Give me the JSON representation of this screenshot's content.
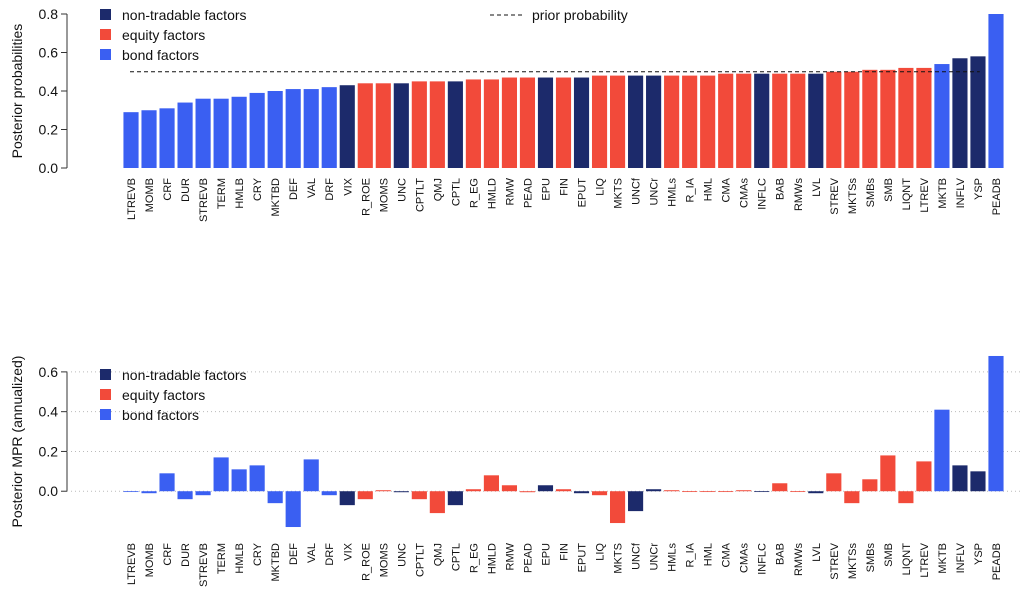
{
  "chart_data": [
    {
      "type": "bar",
      "ylabel": "Posterior probabilities",
      "categories": [
        "LTREVB",
        "MOMB",
        "CRF",
        "DUR",
        "STREVB",
        "TERM",
        "HMLB",
        "CRY",
        "MKTBD",
        "DEF",
        "VAL",
        "DRF",
        "VIX",
        "R_ROE",
        "MOMS",
        "UNC",
        "CPTLT",
        "QMJ",
        "CPTL",
        "R_EG",
        "HMLD",
        "RMW",
        "PEAD",
        "EPU",
        "FIN",
        "EPUT",
        "LIQ",
        "MKTS",
        "UNCf",
        "UNCr",
        "HMLs",
        "R_IA",
        "HML",
        "CMA",
        "CMAs",
        "INFLC",
        "BAB",
        "RMWs",
        "LVL",
        "STREV",
        "MKTSs",
        "SMBs",
        "SMB",
        "LIQNT",
        "LTREV",
        "MKTB",
        "INFLV",
        "YSP",
        "PEADB"
      ],
      "series": [
        {
          "name": "non-tradable factors",
          "color": "#1c2a6b",
          "values": [
            null,
            null,
            null,
            null,
            null,
            null,
            null,
            null,
            null,
            null,
            null,
            null,
            0.43,
            null,
            null,
            0.44,
            null,
            null,
            0.45,
            null,
            null,
            null,
            null,
            0.47,
            null,
            0.47,
            null,
            null,
            0.48,
            0.48,
            null,
            null,
            null,
            null,
            null,
            0.49,
            null,
            null,
            0.49,
            null,
            null,
            null,
            null,
            null,
            null,
            null,
            0.57,
            0.58,
            null
          ]
        },
        {
          "name": "equity factors",
          "color": "#f24a3a",
          "values": [
            null,
            null,
            null,
            null,
            null,
            null,
            null,
            null,
            null,
            null,
            null,
            null,
            null,
            0.44,
            0.44,
            null,
            0.45,
            0.45,
            null,
            0.46,
            0.46,
            0.47,
            0.47,
            null,
            0.47,
            null,
            0.48,
            0.48,
            null,
            null,
            0.48,
            0.48,
            0.48,
            0.49,
            0.49,
            null,
            0.49,
            0.49,
            null,
            0.5,
            0.5,
            0.51,
            0.51,
            0.52,
            0.52,
            null,
            null,
            null,
            null
          ]
        },
        {
          "name": "bond factors",
          "color": "#3a5ff2",
          "values": [
            0.29,
            0.3,
            0.31,
            0.34,
            0.36,
            0.36,
            0.37,
            0.39,
            0.4,
            0.41,
            0.41,
            0.42,
            null,
            null,
            null,
            null,
            null,
            null,
            null,
            null,
            null,
            null,
            null,
            null,
            null,
            null,
            null,
            null,
            null,
            null,
            null,
            null,
            null,
            null,
            null,
            null,
            null,
            null,
            null,
            null,
            null,
            null,
            null,
            null,
            null,
            0.54,
            null,
            null,
            0.8
          ]
        }
      ],
      "reference_line": {
        "label": "prior probability",
        "value": 0.5
      },
      "ylim": [
        0,
        0.8
      ],
      "yticks": [
        {
          "value": 0,
          "label": "0.0"
        },
        0.2,
        0.4,
        0.6,
        0.8
      ],
      "grid": false,
      "legend": "top-left"
    },
    {
      "type": "bar",
      "ylabel": "Posterior MPR (annualized)",
      "categories": [
        "LTREVB",
        "MOMB",
        "CRF",
        "DUR",
        "STREVB",
        "TERM",
        "HMLB",
        "CRY",
        "MKTBD",
        "DEF",
        "VAL",
        "DRF",
        "VIX",
        "R_ROE",
        "MOMS",
        "UNC",
        "CPTLT",
        "QMJ",
        "CPTL",
        "R_EG",
        "HMLD",
        "RMW",
        "PEAD",
        "EPU",
        "FIN",
        "EPUT",
        "LIQ",
        "MKTS",
        "UNCf",
        "UNCr",
        "HMLs",
        "R_IA",
        "HML",
        "CMA",
        "CMAs",
        "INFLC",
        "BAB",
        "RMWs",
        "LVL",
        "STREV",
        "MKTSs",
        "SMBs",
        "SMB",
        "LIQNT",
        "LTREV",
        "MKTB",
        "INFLV",
        "YSP",
        "PEADB"
      ],
      "series": [
        {
          "name": "non-tradable factors",
          "color": "#1c2a6b",
          "values": [
            null,
            null,
            null,
            null,
            null,
            null,
            null,
            null,
            null,
            null,
            null,
            null,
            -0.07,
            null,
            null,
            -0.005,
            null,
            null,
            -0.07,
            null,
            null,
            null,
            null,
            0.03,
            null,
            -0.01,
            null,
            null,
            -0.1,
            0.01,
            null,
            null,
            null,
            null,
            null,
            0,
            null,
            null,
            -0.01,
            null,
            null,
            null,
            null,
            null,
            null,
            null,
            0.13,
            0.1,
            null
          ]
        },
        {
          "name": "equity factors",
          "color": "#f24a3a",
          "values": [
            null,
            null,
            null,
            null,
            null,
            null,
            null,
            null,
            null,
            null,
            null,
            null,
            null,
            -0.04,
            0.005,
            null,
            -0.04,
            -0.11,
            null,
            0.01,
            0.08,
            0.03,
            -0.005,
            null,
            0.01,
            null,
            -0.02,
            -0.16,
            null,
            null,
            0.005,
            0,
            0,
            0,
            0.005,
            null,
            0.04,
            0,
            null,
            0.09,
            -0.06,
            0.06,
            0.18,
            -0.06,
            0.15,
            null,
            null,
            null,
            null
          ]
        },
        {
          "name": "bond factors",
          "color": "#3a5ff2",
          "values": [
            0,
            -0.01,
            0.09,
            -0.04,
            -0.02,
            0.17,
            0.11,
            0.13,
            -0.06,
            -0.18,
            0.16,
            -0.02,
            null,
            null,
            null,
            null,
            null,
            null,
            null,
            null,
            null,
            null,
            null,
            null,
            null,
            null,
            null,
            null,
            null,
            null,
            null,
            null,
            null,
            null,
            null,
            null,
            null,
            null,
            null,
            null,
            null,
            null,
            null,
            null,
            null,
            0.41,
            null,
            null,
            0.68
          ]
        }
      ],
      "ylim": [
        -0.2,
        0.7
      ],
      "yticks": [
        {
          "value": 0,
          "label": "0.0"
        },
        0.2,
        0.4,
        0.6
      ],
      "grid": true,
      "legend": "top-left"
    }
  ]
}
